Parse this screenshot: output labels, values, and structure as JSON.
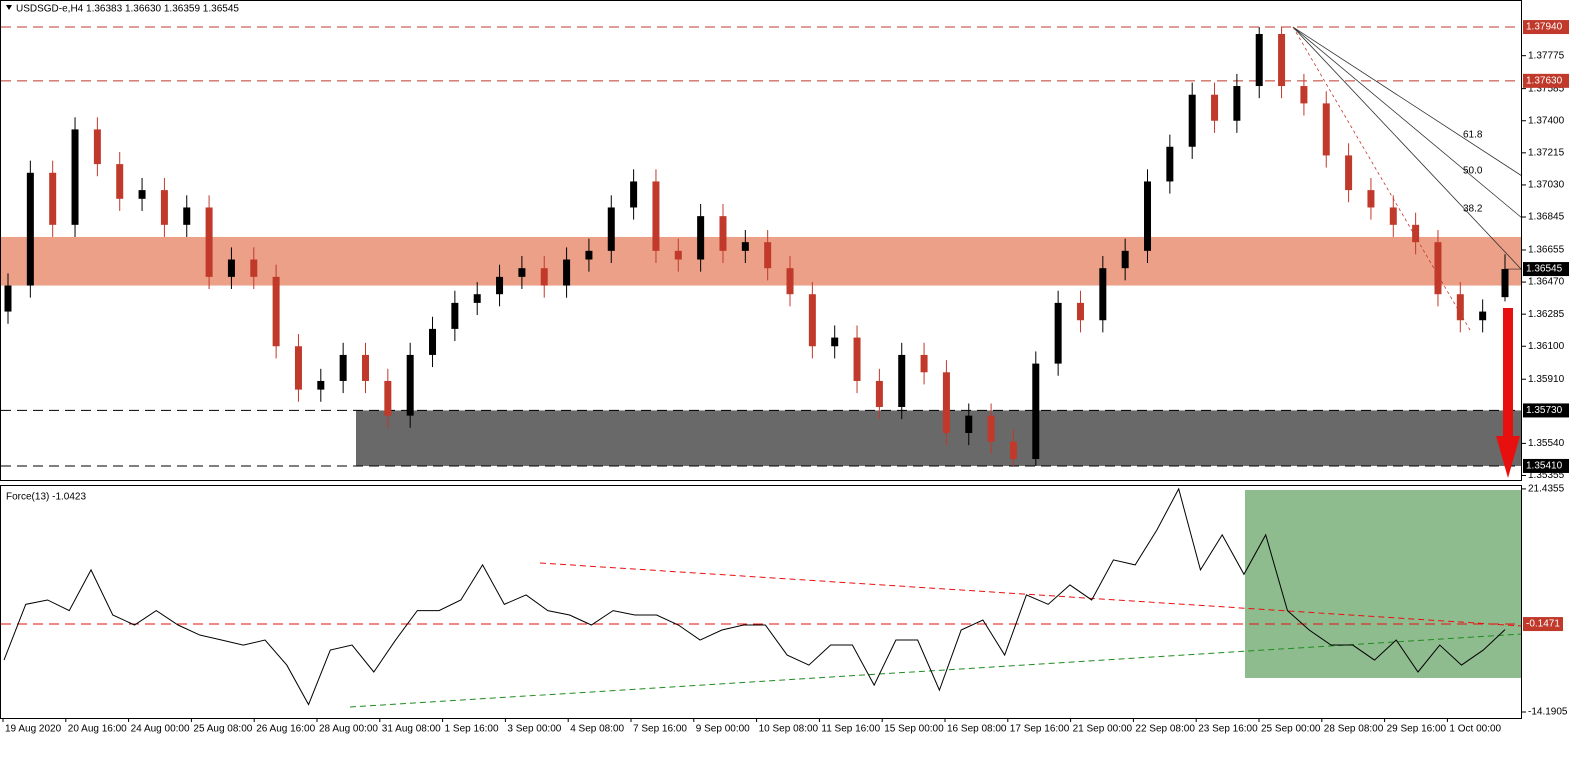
{
  "chart_data": [
    {
      "type": "candlestick",
      "title": "USDSGD-e,H4 1.36383 1.36630 1.36359 1.36545",
      "open": [
        1.363,
        1.3645,
        1.371,
        1.368,
        1.3735,
        1.3715,
        1.3695,
        1.37,
        1.368,
        1.369,
        1.365,
        1.366,
        1.365,
        1.361,
        1.3585,
        1.359,
        1.3605,
        1.359,
        1.357,
        1.3605,
        1.362,
        1.3635,
        1.364,
        1.365,
        1.3655,
        1.3645,
        1.366,
        1.3665,
        1.369,
        1.3705,
        1.3665,
        1.366,
        1.3685,
        1.3665,
        1.367,
        1.3655,
        1.364,
        1.361,
        1.3615,
        1.359,
        1.3575,
        1.3605,
        1.3595,
        1.356,
        1.357,
        1.3555,
        1.3545,
        1.36,
        1.3635,
        1.3625,
        1.3655,
        1.3665,
        1.3705,
        1.3725,
        1.3755,
        1.374,
        1.376,
        1.379,
        1.376,
        1.375,
        1.372,
        1.37,
        1.369,
        1.368,
        1.367,
        1.364,
        1.3625,
        1.36383
      ],
      "high": [
        1.3652,
        1.3717,
        1.3717,
        1.3742,
        1.3742,
        1.3722,
        1.3707,
        1.3707,
        1.3697,
        1.3697,
        1.3667,
        1.3667,
        1.3657,
        1.3617,
        1.3597,
        1.3612,
        1.3612,
        1.3597,
        1.3612,
        1.3627,
        1.3642,
        1.3647,
        1.3657,
        1.3662,
        1.3662,
        1.3667,
        1.3672,
        1.3697,
        1.3712,
        1.3712,
        1.3672,
        1.3692,
        1.3692,
        1.3677,
        1.3677,
        1.3662,
        1.3647,
        1.3622,
        1.3622,
        1.3597,
        1.3612,
        1.3612,
        1.3602,
        1.3577,
        1.3577,
        1.3562,
        1.3607,
        1.3642,
        1.3642,
        1.3662,
        1.3672,
        1.3712,
        1.3732,
        1.3762,
        1.3762,
        1.3767,
        1.3794,
        1.3794,
        1.3767,
        1.3757,
        1.3727,
        1.3707,
        1.3697,
        1.3687,
        1.3677,
        1.3647,
        1.3637,
        1.3663
      ],
      "low": [
        1.3623,
        1.3638,
        1.3673,
        1.3673,
        1.3708,
        1.3688,
        1.3688,
        1.3673,
        1.3673,
        1.3643,
        1.3643,
        1.3643,
        1.3603,
        1.3578,
        1.3578,
        1.3583,
        1.3583,
        1.3563,
        1.3563,
        1.3598,
        1.3613,
        1.3628,
        1.3633,
        1.3643,
        1.3638,
        1.3638,
        1.3653,
        1.3658,
        1.3683,
        1.3658,
        1.3653,
        1.3653,
        1.3658,
        1.3658,
        1.3648,
        1.3633,
        1.3603,
        1.3603,
        1.3583,
        1.3568,
        1.3568,
        1.3588,
        1.3553,
        1.3553,
        1.3548,
        1.3541,
        1.3541,
        1.3593,
        1.3618,
        1.3618,
        1.3648,
        1.3658,
        1.3698,
        1.3718,
        1.3733,
        1.3733,
        1.3753,
        1.3753,
        1.3743,
        1.3713,
        1.3693,
        1.3683,
        1.3673,
        1.3663,
        1.3633,
        1.3618,
        1.3618,
        1.36359
      ],
      "close": [
        1.3645,
        1.371,
        1.368,
        1.3735,
        1.3715,
        1.3695,
        1.37,
        1.368,
        1.369,
        1.365,
        1.366,
        1.365,
        1.361,
        1.3585,
        1.359,
        1.3605,
        1.359,
        1.357,
        1.3605,
        1.362,
        1.3635,
        1.364,
        1.365,
        1.3655,
        1.3645,
        1.366,
        1.3665,
        1.369,
        1.3705,
        1.3665,
        1.366,
        1.3685,
        1.3665,
        1.367,
        1.3655,
        1.364,
        1.361,
        1.3615,
        1.359,
        1.3575,
        1.3605,
        1.3595,
        1.356,
        1.357,
        1.3555,
        1.3545,
        1.36,
        1.3635,
        1.3625,
        1.3655,
        1.3665,
        1.3705,
        1.3725,
        1.3755,
        1.374,
        1.376,
        1.379,
        1.376,
        1.375,
        1.372,
        1.37,
        1.369,
        1.368,
        1.367,
        1.364,
        1.3625,
        1.363,
        1.36545
      ],
      "ylim": [
        1.35329,
        1.38096
      ],
      "yticks": [
        {
          "value": 1.37775,
          "label": "1.37775"
        },
        {
          "value": 1.37585,
          "label": "1.37585"
        },
        {
          "value": 1.374,
          "label": "1.37400"
        },
        {
          "value": 1.37215,
          "label": "1.37215"
        },
        {
          "value": 1.3703,
          "label": "1.37030"
        },
        {
          "value": 1.36845,
          "label": "1.36845"
        },
        {
          "value": 1.36655,
          "label": "1.36655"
        },
        {
          "value": 1.3647,
          "label": "1.36470"
        },
        {
          "value": 1.36285,
          "label": "1.36285"
        },
        {
          "value": 1.361,
          "label": "1.36100"
        },
        {
          "value": 1.3591,
          "label": "1.35910"
        },
        {
          "value": 1.3554,
          "label": "1.35540"
        },
        {
          "value": 1.35355,
          "label": "1.35355"
        }
      ],
      "resistance_levels": [
        {
          "value": 1.3794,
          "label": "1.37940"
        },
        {
          "value": 1.3763,
          "label": "1.37630"
        }
      ],
      "support_levels": [
        {
          "value": 1.3573,
          "label": "1.35730"
        },
        {
          "value": 1.3541,
          "label": "1.35410"
        }
      ],
      "last_price": 1.36545,
      "resistance_zone": [
        1.3645,
        1.3673
      ],
      "fib_labels": [
        "61.8",
        "50.0",
        "38.2"
      ],
      "x_labels": [
        "19 Aug 2020",
        "20 Aug 16:00",
        "24 Aug 00:00",
        "25 Aug 08:00",
        "26 Aug 16:00",
        "28 Aug 00:00",
        "31 Aug 08:00",
        "1 Sep 16:00",
        "3 Sep 00:00",
        "4 Sep 08:00",
        "7 Sep 16:00",
        "9 Sep 00:00",
        "10 Sep 08:00",
        "11 Sep 16:00",
        "15 Sep 00:00",
        "16 Sep 08:00",
        "17 Sep 16:00",
        "21 Sep 00:00",
        "22 Sep 08:00",
        "23 Sep 16:00",
        "25 Sep 00:00",
        "28 Sep 08:00",
        "29 Sep 16:00",
        "1 Oct 00:00"
      ],
      "up_color": "#000000",
      "down_color": "#c0392b"
    },
    {
      "type": "line",
      "title": "Force(13) -1.0423",
      "values": [
        -5.9,
        3,
        3.7,
        2,
        8.5,
        1.3,
        -0.3,
        2,
        -0.3,
        -1.9,
        -2.7,
        -3.5,
        -2.7,
        -6.7,
        -13,
        -4.3,
        -3.5,
        -7.8,
        -2.7,
        2,
        2,
        3.7,
        9.3,
        3,
        4.5,
        2,
        1.3,
        -0.3,
        2,
        1.3,
        1.3,
        -0.3,
        -2.7,
        -1.1,
        -0.3,
        -0.3,
        -5.1,
        -6.7,
        -3.5,
        -3.5,
        -9.9,
        -2.7,
        -2.7,
        -10.7,
        -1.1,
        0.5,
        -5.1,
        4.5,
        3,
        6.1,
        3.7,
        10.1,
        9.3,
        14.9,
        21.4355,
        8.5,
        14.1,
        7.8,
        14.1,
        2,
        -1.1,
        -3.5,
        -3.5,
        -5.9,
        -2.7,
        -7.8,
        -3.5,
        -6.7,
        -4.3,
        -1.0423
      ],
      "color": "#000000",
      "ylim": [
        -15.15,
        21.9
      ],
      "yticks": [
        21.4355,
        -14.1905
      ],
      "level": -0.1471
    }
  ]
}
